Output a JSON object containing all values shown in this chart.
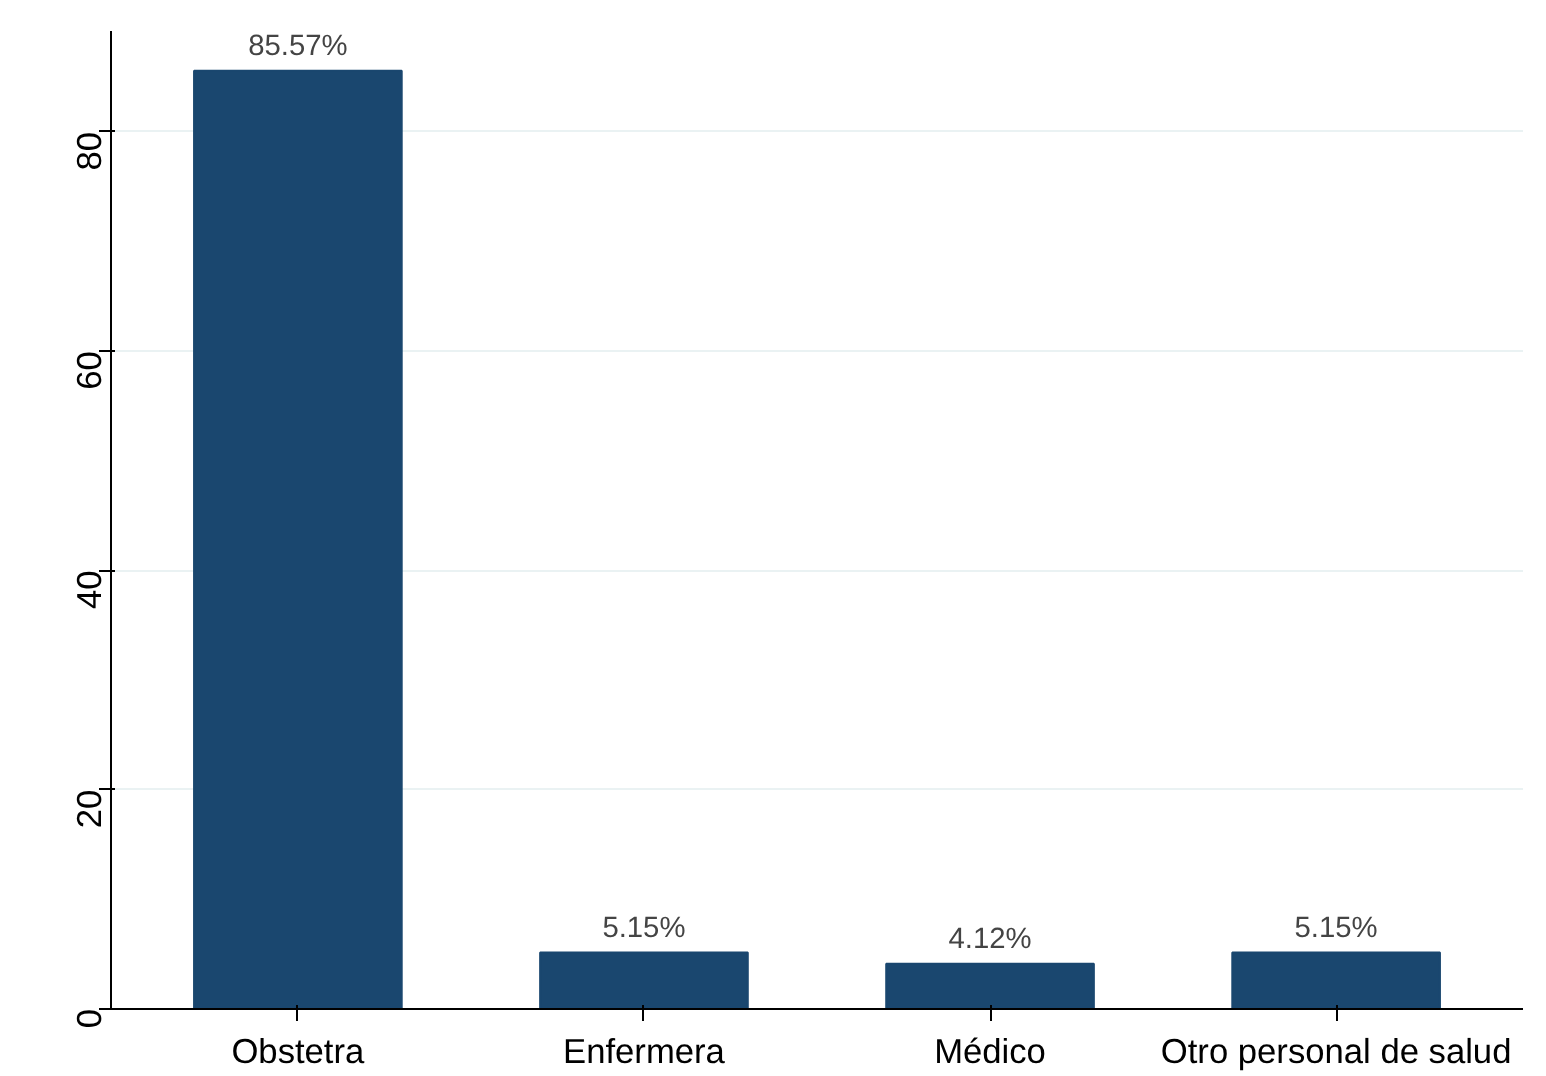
{
  "chart_data": {
    "type": "bar",
    "categories": [
      "Obstetra",
      "Enfermera",
      "Médico",
      "Otro personal de salud"
    ],
    "values": [
      85.57,
      5.15,
      4.12,
      5.15
    ],
    "value_labels": [
      "85.57%",
      "5.15%",
      "4.12%",
      "5.15%"
    ],
    "color": "#1a476f",
    "ylim": [
      0,
      89.2
    ],
    "yticks": [
      0,
      20,
      40,
      60,
      80
    ],
    "grid": "y"
  }
}
